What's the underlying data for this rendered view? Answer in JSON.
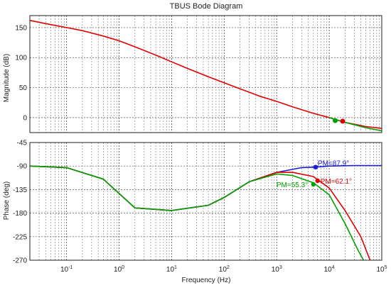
{
  "chart_data": [
    {
      "type": "line",
      "title": "TBUS Bode Diagram",
      "xlabel": "",
      "ylabel": "Magnitude (dB)",
      "xscale": "log",
      "xlim": [
        0.02,
        100000
      ],
      "ylim": [
        -25,
        170
      ],
      "yticks": [
        150,
        100,
        50,
        0
      ],
      "grid": true,
      "series": [
        {
          "color": "#e00000",
          "x": [
            0.02,
            0.05,
            0.1,
            0.2,
            0.5,
            1,
            2,
            5,
            10,
            20,
            50,
            100,
            200,
            500,
            1000,
            2000,
            5000,
            10000,
            20000,
            50000,
            100000
          ],
          "values": [
            162,
            155,
            150,
            145,
            136,
            128,
            118,
            104,
            93,
            82,
            68,
            58,
            48,
            35,
            27,
            18,
            7,
            0,
            -8,
            -15,
            -18
          ]
        },
        {
          "color": "#00a000",
          "x": [
            10000,
            20000,
            30000,
            50000,
            100000
          ],
          "values": [
            0,
            -8,
            -12,
            -17,
            -22
          ]
        }
      ],
      "markers": [
        {
          "color": "#00a000",
          "x": 13000,
          "y": -5
        },
        {
          "color": "#e00000",
          "x": 18000,
          "y": -6
        }
      ]
    },
    {
      "type": "line",
      "xlabel": "Frequency (Hz)",
      "ylabel": "Phase (deg)",
      "xscale": "log",
      "xlim": [
        0.02,
        100000
      ],
      "ylim": [
        -270,
        -45
      ],
      "yticks": [
        -45,
        -90,
        -135,
        -180,
        -225,
        -270
      ],
      "xticks": [
        "10^-1",
        "10^0",
        "10^1",
        "10^2",
        "10^3",
        "10^4",
        "10^5"
      ],
      "grid": true,
      "series": [
        {
          "color": "#1a1ad8",
          "x": [
            0.02,
            0.1,
            0.5,
            2,
            10,
            50,
            100,
            300,
            1000,
            3000,
            5500,
            10000,
            30000,
            100000
          ],
          "values": [
            -90,
            -93,
            -115,
            -170,
            -175,
            -165,
            -150,
            -120,
            -102,
            -93,
            -92,
            -90,
            -89,
            -89
          ]
        },
        {
          "color": "#e00000",
          "x": [
            0.02,
            0.1,
            0.5,
            2,
            10,
            50,
            100,
            300,
            1000,
            2000,
            5000,
            10000,
            20000,
            40000,
            60000
          ],
          "values": [
            -90,
            -93,
            -115,
            -170,
            -175,
            -165,
            -150,
            -120,
            -102,
            -102,
            -110,
            -132,
            -175,
            -225,
            -270
          ]
        },
        {
          "color": "#00a000",
          "x": [
            0.02,
            0.1,
            0.5,
            2,
            10,
            50,
            100,
            300,
            1000,
            2000,
            5000,
            10000,
            20000,
            35000,
            45000
          ],
          "values": [
            -90,
            -93,
            -115,
            -170,
            -175,
            -165,
            -150,
            -120,
            -105,
            -108,
            -122,
            -145,
            -200,
            -250,
            -270
          ]
        }
      ],
      "annotations": [
        {
          "text": "PM=87.9°",
          "color": "#1a1ad8",
          "x": 5500,
          "y": -92
        },
        {
          "text": "PM=62.1°",
          "color": "#e00000",
          "x": 6000,
          "y": -118
        },
        {
          "text": "PM=55.3°",
          "color": "#00a000",
          "x": 5000,
          "y": -125
        }
      ]
    }
  ]
}
